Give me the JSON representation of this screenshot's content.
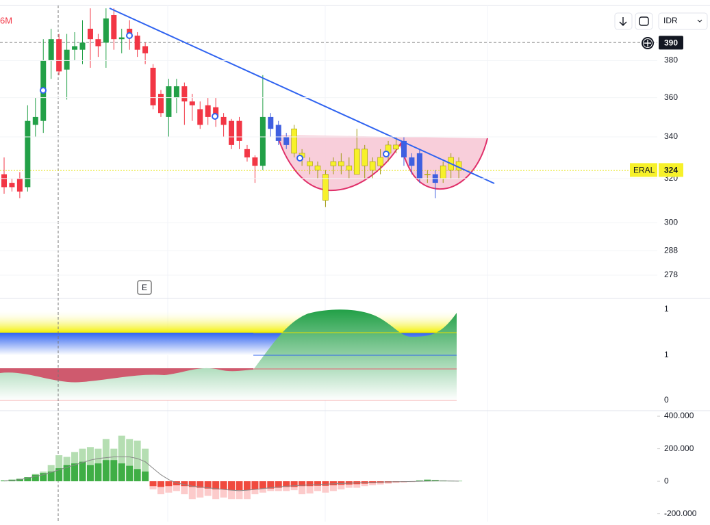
{
  "ui": {
    "fragment": "6M",
    "currency": "IDR",
    "event": "E"
  },
  "chart_data": [
    {
      "type": "candlestick",
      "log_scale": true,
      "ylim": [
        269,
        415
      ],
      "yticks": [
        380,
        360,
        340,
        320,
        300,
        288,
        278
      ],
      "open": [
        322,
        318,
        320,
        316,
        346,
        348,
        380,
        392,
        375,
        386,
        386,
        398,
        392,
        390,
        406,
        392,
        398,
        394,
        388,
        376,
        362,
        350,
        360,
        366,
        358,
        354,
        356,
        355,
        350,
        348,
        348,
        334,
        330,
        326,
        350,
        346,
        340,
        332,
        332,
        328,
        326,
        322,
        326,
        326,
        326,
        322,
        334,
        324,
        326,
        332,
        334,
        338,
        330,
        332,
        322,
        322,
        320,
        324,
        328
      ],
      "high": [
        330,
        320,
        323,
        356,
        360,
        392,
        398,
        395,
        395,
        396,
        403,
        410,
        395,
        410,
        410,
        398,
        403,
        396,
        390,
        378,
        364,
        370,
        370,
        368,
        362,
        358,
        360,
        360,
        352,
        349,
        350,
        336,
        331,
        372,
        352,
        348,
        342,
        346,
        334,
        330,
        328,
        324,
        330,
        332,
        330,
        344,
        336,
        330,
        334,
        338,
        340,
        340,
        332,
        334,
        324,
        324,
        328,
        332,
        330
      ],
      "low": [
        313,
        314,
        311,
        314,
        340,
        342,
        370,
        372,
        359,
        380,
        378,
        376,
        382,
        376,
        386,
        384,
        386,
        382,
        378,
        354,
        350,
        340,
        352,
        346,
        348,
        344,
        346,
        345,
        340,
        334,
        334,
        328,
        318,
        324,
        340,
        336,
        334,
        330,
        326,
        322,
        320,
        307,
        322,
        322,
        320,
        322,
        320,
        320,
        322,
        328,
        332,
        326,
        322,
        318,
        318,
        311,
        318,
        320,
        320
      ],
      "close": [
        316,
        316,
        314,
        348,
        350,
        380,
        392,
        374,
        386,
        388,
        390,
        392,
        388,
        404,
        392,
        393,
        393,
        386,
        384,
        356,
        352,
        366,
        366,
        358,
        356,
        346,
        350,
        350,
        346,
        336,
        338,
        330,
        326,
        350,
        344,
        338,
        336,
        344,
        330,
        326,
        324,
        310,
        328,
        328,
        324,
        334,
        326,
        328,
        330,
        336,
        336,
        330,
        326,
        320,
        322,
        318,
        326,
        330,
        324
      ],
      "colors": [
        "#f23645",
        "#f23645",
        "#f23645",
        "#22a047",
        "#22a047",
        "#22a047",
        "#22a047",
        "#f23645",
        "#22a047",
        "#22a047",
        "#22a047",
        "#f23645",
        "#f23645",
        "#22a047",
        "#f23645",
        "#22a047",
        "#f23645",
        "#f23645",
        "#f23645",
        "#f23645",
        "#f23645",
        "#22a047",
        "#22a047",
        "#f23645",
        "#f23645",
        "#f23645",
        "#f23645",
        "#f23645",
        "#f23645",
        "#f23645",
        "#f23645",
        "#f23645",
        "#f23645",
        "#22a047",
        "#3f5fe0",
        "#3f5fe0",
        "#3f5fe0",
        "#f7f12a",
        "#f7f12a",
        "#f7f12a",
        "#f7f12a",
        "#f7f12a",
        "#f7f12a",
        "#f7f12a",
        "#f7f12a",
        "#f7f12a",
        "#f7f12a",
        "#f7f12a",
        "#f7f12a",
        "#f7f12a",
        "#f7f12a",
        "#3f5fe0",
        "#3f5fe0",
        "#3f5fe0",
        "#f7f12a",
        "#3f5fe0",
        "#f7f12a",
        "#f7f12a",
        "#f7f12a"
      ],
      "crosshair_price": 390,
      "last_price": {
        "name": "ERAL",
        "value": 324
      }
    },
    {
      "type": "indicator",
      "axis_labels": [
        "1",
        "1",
        "0"
      ]
    },
    {
      "type": "histogram",
      "ylim": [
        -248000,
        434000
      ],
      "yticks": [
        {
          "value": 400000,
          "label": "400.000"
        },
        {
          "value": 200000,
          "label": "200.000"
        },
        0,
        {
          "value": -200000,
          "label": "-200.000"
        }
      ],
      "series": [
        {
          "color": "#f6b6b6",
          "neg_color": "#fccbcb",
          "pos_color": "#b5deb2",
          "values": [
            3000,
            5000,
            10000,
            25000,
            45000,
            60000,
            100000,
            160000,
            150000,
            180000,
            200000,
            210000,
            200000,
            260000,
            200000,
            280000,
            260000,
            250000,
            200000,
            -50000,
            -80000,
            -70000,
            -60000,
            -80000,
            -110000,
            -100000,
            -90000,
            -110000,
            -100000,
            -110000,
            -110000,
            -110000,
            -80000,
            -70000,
            -60000,
            -60000,
            -60000,
            -55000,
            -80000,
            -75000,
            -60000,
            -70000,
            -60000,
            -50000,
            -40000,
            -40000,
            -30000,
            -25000,
            -20000,
            -15000,
            -10000,
            -8000,
            -5000,
            3000,
            5000,
            5000,
            3000,
            2000,
            1000
          ]
        },
        {
          "color": "#f23645",
          "neg_color": "#f04a3e",
          "pos_color": "#3fae45",
          "values": [
            5000,
            10000,
            15000,
            25000,
            40000,
            50000,
            60000,
            80000,
            100000,
            110000,
            120000,
            100000,
            110000,
            130000,
            130000,
            110000,
            95000,
            75000,
            60000,
            -30000,
            -35000,
            -30000,
            -25000,
            -30000,
            -35000,
            -40000,
            -45000,
            -50000,
            -50000,
            -55000,
            -55000,
            -55000,
            -50000,
            -45000,
            -45000,
            -40000,
            -35000,
            -35000,
            -30000,
            -30000,
            -28000,
            -28000,
            -25000,
            -22000,
            -20000,
            -18000,
            -15000,
            -12000,
            -10000,
            -8000,
            -5000,
            -3000,
            -2000,
            5000,
            10000,
            8000,
            5000,
            3000,
            2000
          ]
        },
        {
          "type": "line",
          "color": "#888888",
          "values": [
            2000,
            5000,
            10000,
            20000,
            30000,
            40000,
            55000,
            70000,
            85000,
            100000,
            115000,
            130000,
            140000,
            145000,
            150000,
            150000,
            150000,
            140000,
            120000,
            80000,
            40000,
            10000,
            -10000,
            -20000,
            -30000,
            -35000,
            -40000,
            -45000,
            -50000,
            -55000,
            -58000,
            -55000,
            -50000,
            -45000,
            -40000,
            -35000,
            -30000,
            -28000,
            -25000,
            -22000,
            -20000,
            -18000,
            -16000,
            -14000,
            -12000,
            -10000,
            -8000,
            -6000,
            -5000,
            -4000,
            -3000,
            -2000,
            -1000,
            0,
            1000,
            2000,
            2000,
            1500,
            1000
          ]
        }
      ]
    }
  ]
}
